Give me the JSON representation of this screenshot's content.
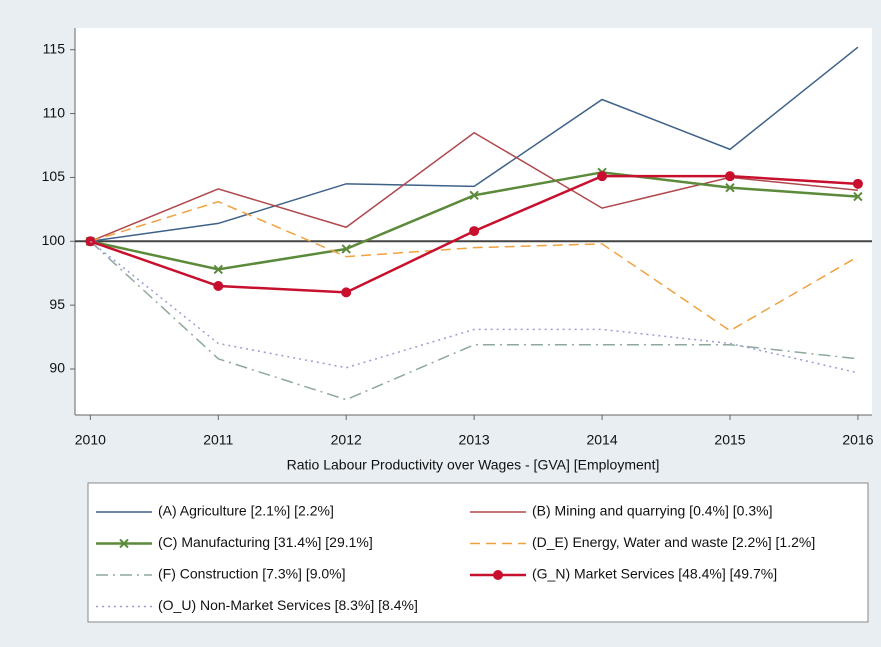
{
  "chart_data": {
    "type": "line",
    "x_label": "Ratio Labour Productivity over Wages  - [GVA] [Employment]",
    "x": [
      2010,
      2011,
      2012,
      2013,
      2014,
      2015,
      2016
    ],
    "xlim": [
      2009.88,
      2016.11
    ],
    "xticks": [
      2010,
      2011,
      2012,
      2013,
      2014,
      2015,
      2016
    ],
    "ylim": [
      86.4,
      116.7
    ],
    "yticks": [
      90,
      95,
      100,
      105,
      110,
      115
    ],
    "reference_line": 100,
    "series": [
      {
        "name": "(A) Agriculture [2.1%] [2.2%]",
        "color": "#3d6189",
        "dash": "solid",
        "marker": "none",
        "values": [
          100,
          101.4,
          104.5,
          104.3,
          111.1,
          107.2,
          115.2
        ]
      },
      {
        "name": "(B) Mining and quarrying [0.4%] [0.3%]",
        "color": "#b0484c",
        "dash": "solid",
        "marker": "none",
        "values": [
          100,
          104.1,
          101.1,
          108.5,
          102.6,
          105.0,
          104.0
        ]
      },
      {
        "name": "(C) Manufacturing [31.4%] [29.1%]",
        "color": "#5b8a3b",
        "dash": "solid",
        "marker": "x",
        "values": [
          100,
          97.8,
          99.4,
          103.6,
          105.4,
          104.2,
          103.5
        ]
      },
      {
        "name": "(D_E) Energy, Water and waste [2.2%] [1.2%]",
        "color": "#f0a23e",
        "dash": "dashed",
        "marker": "none",
        "values": [
          100,
          103.1,
          98.8,
          99.5,
          99.8,
          93.0,
          98.8
        ]
      },
      {
        "name": "(F) Construction [7.3%] [9.0%]",
        "color": "#8fa89c",
        "dash": "dashdot",
        "marker": "none",
        "values": [
          100,
          90.8,
          87.6,
          91.9,
          91.9,
          91.9,
          90.8
        ]
      },
      {
        "name": "(G_N) Market Services [48.4%] [49.7%]",
        "color": "#c8102e",
        "dash": "solid",
        "marker": "circle",
        "values": [
          100,
          96.5,
          96.0,
          100.8,
          105.1,
          105.1,
          104.5
        ]
      },
      {
        "name": "(O_U) Non-Market Services [8.3%] [8.4%]",
        "color": "#9b9bd9",
        "dash": "dotted",
        "marker": "none",
        "values": [
          100,
          92.0,
          90.1,
          93.1,
          93.1,
          92.0,
          89.7
        ]
      }
    ]
  }
}
